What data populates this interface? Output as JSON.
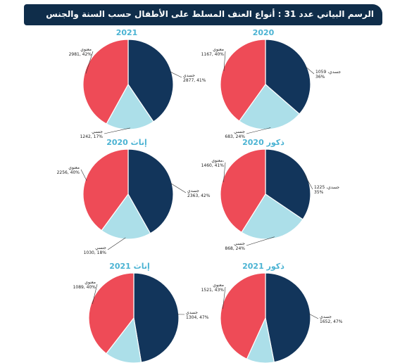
{
  "header": {
    "title": "الرسم البياني عدد 31 :  أنواع العنف المسلط على الأطفال حسب السنة والجنس"
  },
  "colors": {
    "physical": "#12355b",
    "sexual": "#acdfe9",
    "psychological": "#ee4b57",
    "title_accent": "#4bb3d3",
    "header_bg": "#0f2d4a"
  },
  "chart_data": [
    {
      "type": "pie",
      "title": "2020",
      "slices": [
        {
          "label": "جسدي",
          "value": 1059,
          "percent": 36,
          "text_line1": "جسدي، 1059",
          "text_line2": "36%"
        },
        {
          "label": "جنسي",
          "value": 683,
          "percent": 24,
          "text_line1": "جنسي",
          "text_line2": "683, 24%"
        },
        {
          "label": "معنوي",
          "value": 1167,
          "percent": 40,
          "text_line1": "معنوي",
          "text_line2": "1167, 40%"
        }
      ]
    },
    {
      "type": "pie",
      "title": "2021",
      "slices": [
        {
          "label": "جسدي",
          "value": 2877,
          "percent": 41,
          "text_line1": "جسدي",
          "text_line2": "2877, 41%"
        },
        {
          "label": "جنسي",
          "value": 1242,
          "percent": 17,
          "text_line1": "جنسي",
          "text_line2": "1242, 17%"
        },
        {
          "label": "معنوي",
          "value": 2981,
          "percent": 42,
          "text_line1": "معنوي",
          "text_line2": "2981, 42%"
        }
      ]
    },
    {
      "type": "pie",
      "title": "ذكور 2020",
      "slices": [
        {
          "label": "جسدي",
          "value": 1225,
          "percent": 35,
          "text_line1": "جسدي، 1225",
          "text_line2": "35%"
        },
        {
          "label": "جنسي",
          "value": 868,
          "percent": 24,
          "text_line1": "جنسي",
          "text_line2": "868, 24%"
        },
        {
          "label": "معنوي",
          "value": 1460,
          "percent": 41,
          "text_line1": "معنوي،",
          "text_line2": "1460, 41%"
        }
      ]
    },
    {
      "type": "pie",
      "title": "إناث 2020",
      "slices": [
        {
          "label": "جسدي",
          "value": 2363,
          "percent": 42,
          "text_line1": "جسدي",
          "text_line2": "2363, 42%"
        },
        {
          "label": "جنسي",
          "value": 1030,
          "percent": 18,
          "text_line1": "جنسي",
          "text_line2": "1030, 18%"
        },
        {
          "label": "معنوي",
          "value": 2256,
          "percent": 40,
          "text_line1": "معنوي",
          "text_line2": "2256, 40%"
        }
      ]
    },
    {
      "type": "pie",
      "title": "ذكور 2021",
      "slices": [
        {
          "label": "جسدي",
          "value": 1652,
          "percent": 47,
          "text_line1": "جسدي",
          "text_line2": "1652, 47%"
        },
        {
          "label": "جنسي",
          "value": 348,
          "percent": 10,
          "text_line1": "",
          "text_line2": ""
        },
        {
          "label": "معنوي",
          "value": 1521,
          "percent": 43,
          "text_line1": "معنوي",
          "text_line2": "1521, 43%"
        }
      ]
    },
    {
      "type": "pie",
      "title": "إناث 2021",
      "slices": [
        {
          "label": "جسدي",
          "value": 1304,
          "percent": 47,
          "text_line1": "جسدي",
          "text_line2": "1304, 47%"
        },
        {
          "label": "جنسي",
          "value": 361,
          "percent": 13,
          "text_line1": "",
          "text_line2": ""
        },
        {
          "label": "معنوي",
          "value": 1089,
          "percent": 40,
          "text_line1": "معنوي",
          "text_line2": "1089, 40%"
        }
      ]
    }
  ]
}
